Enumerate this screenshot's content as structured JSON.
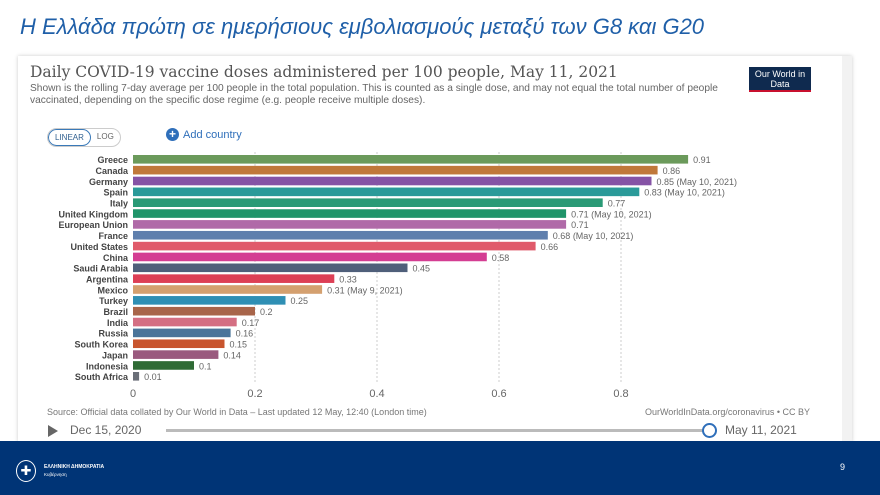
{
  "slide": {
    "title": "Η Ελλάδα πρώτη σε ημερήσιους εμβολιασμούς μεταξύ των G8 και G20",
    "page_number": "9",
    "footer": {
      "line1": "ΕΛΛΗΝΙΚΗ ΔΗΜΟΚΡΑΤΙΑ",
      "line2": "Κυβέρνηση"
    }
  },
  "card": {
    "logo": "Our World in Data",
    "scale_options": [
      "LINEAR",
      "LOG"
    ],
    "selected_scale": "LINEAR",
    "add_country": "Add country",
    "source": "Source: Official data collated by Our World in Data – Last updated 12 May, 12:40 (London time)",
    "credit": "OurWorldInData.org/coronavirus • CC BY",
    "timeline": {
      "start": "Dec 15, 2020",
      "end": "May 11, 2021",
      "position": 1.0
    }
  },
  "chart_data": {
    "type": "bar",
    "orientation": "horizontal",
    "title": "Daily COVID-19 vaccine doses administered per 100 people, May 11, 2021",
    "subtitle": "Shown is the rolling 7-day average per 100 people in the total population. This is counted as a single dose, and may not equal the total number of people vaccinated, depending on the specific dose regime (e.g. people receive multiple doses).",
    "xlim": [
      0,
      0.95
    ],
    "xticks": [
      "0",
      "0.2",
      "0.4",
      "0.6",
      "0.8"
    ],
    "grid": true,
    "categories": [
      "Greece",
      "Canada",
      "Germany",
      "Spain",
      "Italy",
      "United Kingdom",
      "European Union",
      "France",
      "United States",
      "China",
      "Saudi Arabia",
      "Argentina",
      "Mexico",
      "Turkey",
      "Brazil",
      "India",
      "Russia",
      "South Korea",
      "Japan",
      "Indonesia",
      "South Africa"
    ],
    "values": [
      0.91,
      0.86,
      0.85,
      0.83,
      0.77,
      0.71,
      0.71,
      0.68,
      0.66,
      0.58,
      0.45,
      0.33,
      0.31,
      0.25,
      0.2,
      0.17,
      0.16,
      0.15,
      0.14,
      0.1,
      0.01
    ],
    "labels": [
      "0.91",
      "0.86",
      "0.85 (May 10, 2021)",
      "0.83 (May 10, 2021)",
      "0.77",
      "0.71 (May 10, 2021)",
      "0.71",
      "0.68 (May 10, 2021)",
      "0.66",
      "0.58",
      "0.45",
      "0.33",
      "0.31 (May 9, 2021)",
      "0.25",
      "0.2",
      "0.17",
      "0.16",
      "0.15",
      "0.14",
      "0.1",
      "0.01"
    ],
    "colors": [
      "#6b9a5b",
      "#c0783a",
      "#8553a5",
      "#2a9a99",
      "#2a9a76",
      "#20956a",
      "#b06aa8",
      "#5f7fad",
      "#e05a6a",
      "#d43d92",
      "#4f5f7a",
      "#dd3f55",
      "#d4a06f",
      "#2f8fb4",
      "#a8654a",
      "#d46f83",
      "#4a759a",
      "#c8552e",
      "#9a5a7e",
      "#2f6b35",
      "#6a6f78"
    ]
  }
}
